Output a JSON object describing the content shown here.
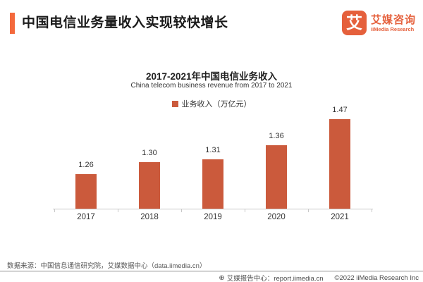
{
  "header": {
    "title": "中国电信业务量收入实现较快增长"
  },
  "logo": {
    "mark_glyph": "艾",
    "name_cn": "艾媒咨询",
    "name_en": "iiMedia Research"
  },
  "chart": {
    "title": "2017-2021年中国电信业务收入",
    "subtitle": "China telecom business revenue from 2017 to 2021",
    "legend_label": "业务收入（万亿元）"
  },
  "chart_data": {
    "type": "bar",
    "categories": [
      "2017",
      "2018",
      "2019",
      "2020",
      "2021"
    ],
    "values": [
      1.26,
      1.3,
      1.31,
      1.36,
      1.47
    ],
    "value_labels": [
      "1.26",
      "1.30",
      "1.31",
      "1.36",
      "1.47"
    ],
    "series_name": "业务收入（万亿元）",
    "title": "2017-2021年中国电信业务收入",
    "subtitle": "China telecom business revenue from 2017 to 2021",
    "xlabel": "",
    "ylabel": "",
    "ylim": [
      1.14,
      1.5
    ],
    "grid": false,
    "legend_position": "top-center",
    "bar_color": "#CB5A3C"
  },
  "footer": {
    "source": "数据来源：中国信息通信研究院，艾媒数据中心（data.iimedia.cn）",
    "globe_icon": "⊕",
    "report_center": "艾媒报告中心：report.iimedia.cn",
    "copyright": "©2022  iiMedia Research Inc"
  },
  "colors": {
    "accent_orange": "#F4693C",
    "logo_orange": "#E5603C",
    "bar_brick": "#CB5A3C"
  }
}
